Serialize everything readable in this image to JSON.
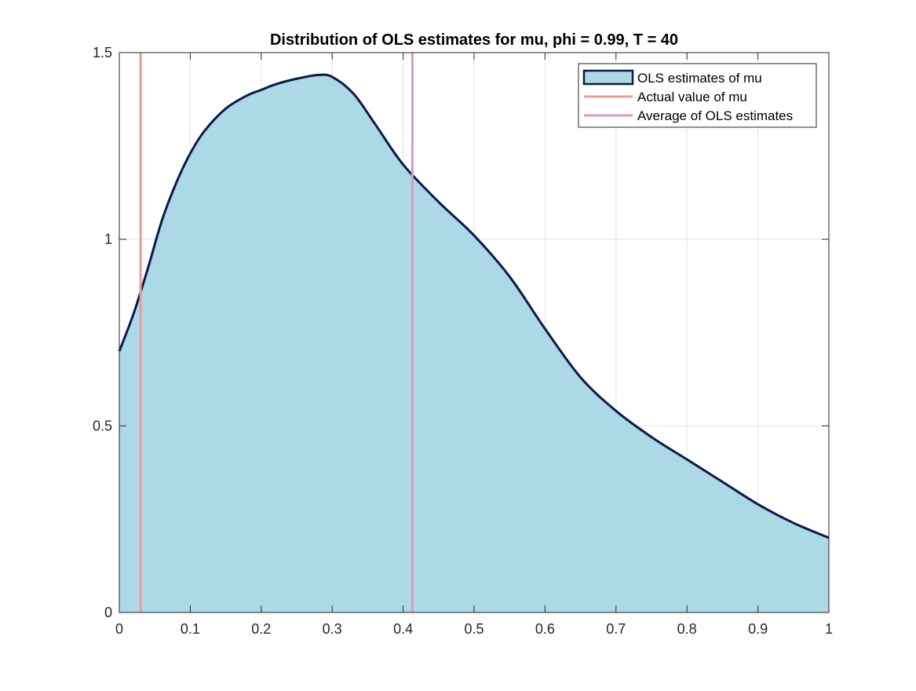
{
  "chart_data": {
    "type": "area",
    "title": "Distribution of OLS estimates for mu, phi = 0.99, T = 40",
    "xlabel": "",
    "ylabel": "",
    "xlim": [
      0,
      1
    ],
    "ylim": [
      0,
      1.5
    ],
    "x_ticks": [
      0,
      0.1,
      0.2,
      0.3,
      0.4,
      0.5,
      0.6,
      0.7,
      0.8,
      0.9,
      1
    ],
    "x_tick_labels": [
      "0",
      "0.1",
      "0.2",
      "0.3",
      "0.4",
      "0.5",
      "0.6",
      "0.7",
      "0.8",
      "0.9",
      "1"
    ],
    "y_ticks": [
      0,
      0.5,
      1,
      1.5
    ],
    "y_tick_labels": [
      "0",
      "0.5",
      "1",
      "1.5"
    ],
    "grid": true,
    "legend_position": "top-right",
    "series": [
      {
        "name": "OLS estimates of mu",
        "kind": "area",
        "fill_color": "#add8e6",
        "line_color": "#0b1a4a",
        "x": [
          0,
          0.02,
          0.04,
          0.06,
          0.08,
          0.1,
          0.12,
          0.15,
          0.18,
          0.2,
          0.22,
          0.25,
          0.28,
          0.3,
          0.33,
          0.36,
          0.4,
          0.45,
          0.5,
          0.55,
          0.6,
          0.65,
          0.7,
          0.75,
          0.8,
          0.85,
          0.9,
          0.95,
          1.0
        ],
        "y": [
          0.7,
          0.8,
          0.92,
          1.05,
          1.15,
          1.23,
          1.29,
          1.35,
          1.385,
          1.4,
          1.415,
          1.43,
          1.44,
          1.435,
          1.39,
          1.31,
          1.2,
          1.1,
          1.01,
          0.9,
          0.76,
          0.63,
          0.54,
          0.47,
          0.41,
          0.35,
          0.29,
          0.24,
          0.2
        ]
      },
      {
        "name": "Actual value of mu",
        "kind": "vline",
        "x": 0.03,
        "color": "#f19a96"
      },
      {
        "name": "Average of OLS estimates",
        "kind": "vline",
        "x": 0.413,
        "color": "#d69ac9"
      }
    ]
  }
}
